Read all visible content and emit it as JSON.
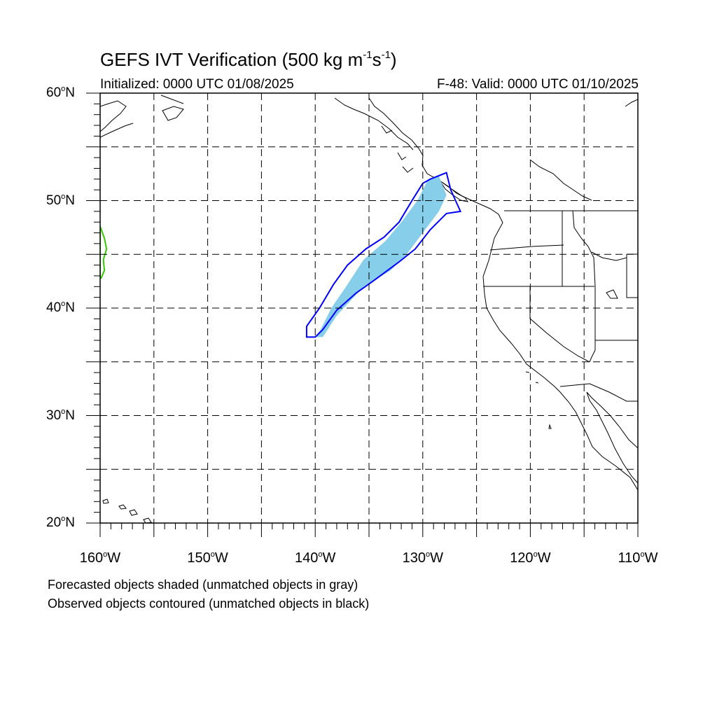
{
  "title": {
    "prefix": "GEFS IVT Verification (500 kg m",
    "exp1": "-1",
    "mid": "s",
    "exp2": "-1",
    "suffix": ")"
  },
  "initialized": "Initialized: 0000 UTC 01/08/2025",
  "valid": "F-48: Valid: 0000 UTC 01/10/2025",
  "footnotes": [
    "Forecasted objects shaded (unmatched objects in gray)",
    "Observed objects contoured (unmatched objects in black)"
  ],
  "degree_symbol": "o",
  "lat_labels": [
    {
      "value": 60,
      "text": "60",
      "hemi": "N"
    },
    {
      "value": 50,
      "text": "50",
      "hemi": "N"
    },
    {
      "value": 40,
      "text": "40",
      "hemi": "N"
    },
    {
      "value": 30,
      "text": "30",
      "hemi": "N"
    },
    {
      "value": 20,
      "text": "20",
      "hemi": "N"
    }
  ],
  "lon_labels": [
    {
      "value": -160,
      "text": "160",
      "hemi": "W"
    },
    {
      "value": -150,
      "text": "150",
      "hemi": "W"
    },
    {
      "value": -140,
      "text": "140",
      "hemi": "W"
    },
    {
      "value": -130,
      "text": "130",
      "hemi": "W"
    },
    {
      "value": -120,
      "text": "120",
      "hemi": "W"
    },
    {
      "value": -110,
      "text": "110",
      "hemi": "W"
    }
  ],
  "map": {
    "lon_range": [
      -160,
      -110
    ],
    "lat_range": [
      20,
      60
    ],
    "grid_interval_deg": 5,
    "grid_style": "dashed",
    "colors": {
      "forecast_fill": "#87ceeb",
      "observed_contour": "#0000ff",
      "unmatched_observed_small": "#33cc00",
      "coastline": "#000000"
    },
    "forecast_object_lonlat": [
      [
        -140.0,
        37.3
      ],
      [
        -139.5,
        38.0
      ],
      [
        -138.5,
        40.0
      ],
      [
        -137.0,
        42.2
      ],
      [
        -135.5,
        44.5
      ],
      [
        -133.5,
        46.2
      ],
      [
        -132.0,
        48.0
      ],
      [
        -130.5,
        50.0
      ],
      [
        -129.5,
        52.0
      ],
      [
        -128.5,
        52.3
      ],
      [
        -127.8,
        50.5
      ],
      [
        -128.5,
        49.0
      ],
      [
        -130.0,
        47.0
      ],
      [
        -131.5,
        45.0
      ],
      [
        -133.0,
        43.5
      ],
      [
        -135.5,
        42.0
      ],
      [
        -138.0,
        39.3
      ],
      [
        -139.3,
        37.3
      ]
    ],
    "observed_object_lonlat": [
      [
        -140.8,
        37.3
      ],
      [
        -140.8,
        38.3
      ],
      [
        -139.6,
        40.0
      ],
      [
        -138.3,
        42.2
      ],
      [
        -137.0,
        44.0
      ],
      [
        -135.3,
        45.5
      ],
      [
        -133.6,
        46.6
      ],
      [
        -132.2,
        48.0
      ],
      [
        -131.0,
        50.0
      ],
      [
        -130.0,
        51.6
      ],
      [
        -129.3,
        52.0
      ],
      [
        -127.8,
        52.6
      ],
      [
        -127.4,
        51.0
      ],
      [
        -126.5,
        49.0
      ],
      [
        -127.8,
        48.8
      ],
      [
        -129.3,
        47.3
      ],
      [
        -130.7,
        45.5
      ],
      [
        -132.2,
        44.3
      ],
      [
        -134.5,
        42.6
      ],
      [
        -136.2,
        41.4
      ],
      [
        -138.0,
        39.8
      ],
      [
        -139.3,
        38.0
      ],
      [
        -140.0,
        37.3
      ]
    ],
    "unmatched_object_lonlat": [
      [
        -160.0,
        47.6
      ],
      [
        -159.6,
        46.5
      ],
      [
        -159.4,
        45.5
      ],
      [
        -159.7,
        44.5
      ],
      [
        -159.6,
        43.5
      ],
      [
        -159.9,
        42.8
      ],
      [
        -160.0,
        42.8
      ]
    ]
  }
}
